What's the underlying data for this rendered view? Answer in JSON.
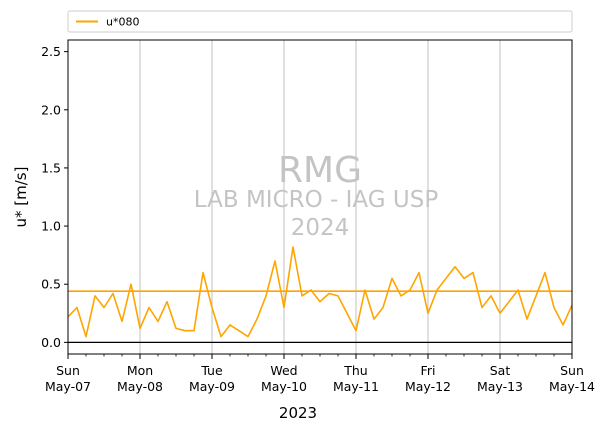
{
  "chart_data": {
    "type": "line",
    "xlabel": "2023",
    "ylabel": "u* [m/s]",
    "ylim": [
      -0.1,
      2.6
    ],
    "xlim": [
      "2023-05-07",
      "2023-05-14"
    ],
    "yticks": [
      "0.0",
      "0.5",
      "1.0",
      "1.5",
      "2.0",
      "2.5"
    ],
    "xticks": [
      {
        "day": "Sun",
        "date": "May-07"
      },
      {
        "day": "Mon",
        "date": "May-08"
      },
      {
        "day": "Tue",
        "date": "May-09"
      },
      {
        "day": "Wed",
        "date": "May-10"
      },
      {
        "day": "Thu",
        "date": "May-11"
      },
      {
        "day": "Fri",
        "date": "May-12"
      },
      {
        "day": "Sat",
        "date": "May-13"
      },
      {
        "day": "Sun",
        "date": "May-14"
      }
    ],
    "grid": "vertical",
    "legend_position": "top, above plot",
    "mean_line": 0.44,
    "zero_line": 0.0,
    "watermark": {
      "line1": "RMG",
      "line2": "LAB MICRO - IAG USP",
      "line3": "2024"
    },
    "series": [
      {
        "name": "u*080",
        "color": "#ffa500",
        "x": [
          "2023-05-07 00:00",
          "2023-05-07 03:00",
          "2023-05-07 06:00",
          "2023-05-07 09:00",
          "2023-05-07 12:00",
          "2023-05-07 15:00",
          "2023-05-07 18:00",
          "2023-05-07 21:00",
          "2023-05-08 00:00",
          "2023-05-08 03:00",
          "2023-05-08 06:00",
          "2023-05-08 09:00",
          "2023-05-08 12:00",
          "2023-05-08 15:00",
          "2023-05-08 18:00",
          "2023-05-08 21:00",
          "2023-05-09 00:00",
          "2023-05-09 03:00",
          "2023-05-09 06:00",
          "2023-05-09 09:00",
          "2023-05-09 12:00",
          "2023-05-09 15:00",
          "2023-05-09 18:00",
          "2023-05-09 21:00",
          "2023-05-10 00:00",
          "2023-05-10 03:00",
          "2023-05-10 06:00",
          "2023-05-10 09:00",
          "2023-05-10 12:00",
          "2023-05-10 15:00",
          "2023-05-10 18:00",
          "2023-05-10 21:00",
          "2023-05-11 00:00",
          "2023-05-11 03:00",
          "2023-05-11 06:00",
          "2023-05-11 09:00",
          "2023-05-11 12:00",
          "2023-05-11 15:00",
          "2023-05-11 18:00",
          "2023-05-11 21:00",
          "2023-05-12 00:00",
          "2023-05-12 03:00",
          "2023-05-12 06:00",
          "2023-05-12 09:00",
          "2023-05-12 12:00",
          "2023-05-12 15:00",
          "2023-05-12 18:00",
          "2023-05-12 21:00",
          "2023-05-13 00:00",
          "2023-05-13 03:00",
          "2023-05-13 06:00",
          "2023-05-13 09:00",
          "2023-05-13 12:00",
          "2023-05-13 15:00",
          "2023-05-13 18:00",
          "2023-05-13 21:00",
          "2023-05-14 00:00"
        ],
        "values": [
          0.22,
          0.3,
          0.05,
          0.4,
          0.3,
          0.42,
          0.18,
          0.5,
          0.12,
          0.3,
          0.18,
          0.35,
          0.12,
          0.1,
          0.1,
          0.6,
          0.3,
          0.05,
          0.15,
          0.1,
          0.05,
          0.2,
          0.4,
          0.7,
          0.3,
          0.82,
          0.4,
          0.45,
          0.35,
          0.42,
          0.4,
          0.25,
          0.1,
          0.45,
          0.2,
          0.3,
          0.55,
          0.4,
          0.45,
          0.6,
          0.25,
          0.45,
          0.55,
          0.65,
          0.55,
          0.6,
          0.3,
          0.4,
          0.25,
          0.35,
          0.45,
          0.2,
          0.4,
          0.6,
          0.3,
          0.15,
          0.32
        ]
      }
    ]
  }
}
